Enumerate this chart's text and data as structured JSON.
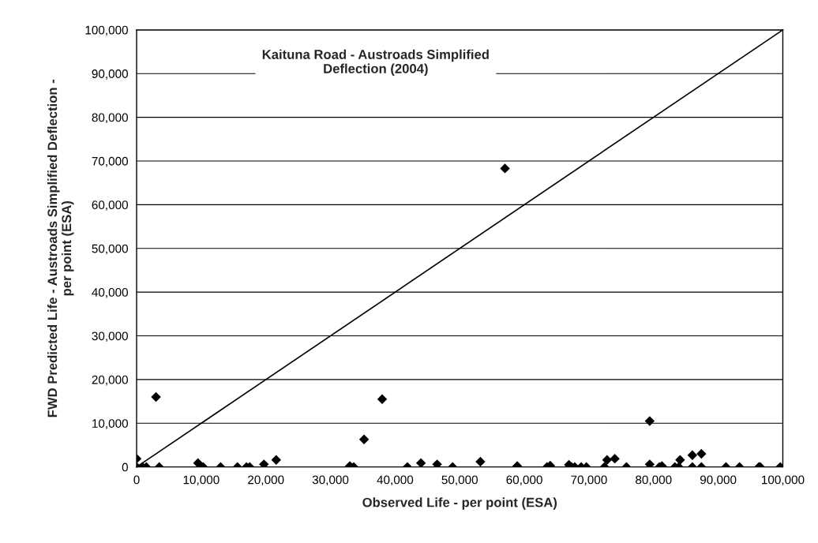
{
  "chart_data": {
    "type": "scatter",
    "title": "Kaituna Road - Austroads Simplified\nDeflection (2004)",
    "xlabel": "Observed Life - per point (ESA)",
    "ylabel": "FWD Predicted Life - Austroads Simplified Deflection -\nper point (ESA)",
    "series": [
      {
        "color": "#000000",
        "marker": "diamond",
        "x": [
          0,
          0,
          900,
          1500,
          3000,
          3500,
          9500,
          10300,
          13000,
          15600,
          17000,
          17500,
          19700,
          21600,
          33000,
          33600,
          35200,
          38000,
          41900,
          44000,
          46500,
          48900,
          53200,
          57000,
          58900,
          63500,
          64000,
          66900,
          67300,
          67800,
          68800,
          69600,
          72400,
          72800,
          74000,
          75800,
          79400,
          79400,
          80900,
          81300,
          83300,
          83900,
          84100,
          86000,
          86000,
          87400,
          87400,
          91200,
          93300,
          96300,
          96500,
          99600
        ],
        "values": [
          1900,
          0,
          0,
          0,
          16000,
          0,
          900,
          0,
          0,
          0,
          0,
          0,
          600,
          1600,
          200,
          0,
          6300,
          15500,
          0,
          900,
          600,
          0,
          1200,
          68300,
          200,
          0,
          300,
          500,
          0,
          0,
          0,
          0,
          0,
          1600,
          1900,
          0,
          600,
          10500,
          0,
          200,
          0,
          0,
          1600,
          2700,
          0,
          3000,
          0,
          0,
          0,
          0,
          0,
          0
        ]
      },
      {
        "type": "line",
        "color": "#000000",
        "marker": "none",
        "x": [
          0,
          100000
        ],
        "values": [
          0,
          100000
        ]
      }
    ],
    "xlim": [
      0,
      100000
    ],
    "ylim": [
      0,
      100000
    ],
    "xticks": [
      {
        "value": 0,
        "label": "0"
      },
      {
        "value": 10000,
        "label": "10,000"
      },
      {
        "value": 20000,
        "label": "20,000"
      },
      {
        "value": 30000,
        "label": "30,000"
      },
      {
        "value": 40000,
        "label": "40,000"
      },
      {
        "value": 50000,
        "label": "50,000"
      },
      {
        "value": 60000,
        "label": "60,000"
      },
      {
        "value": 70000,
        "label": "70,000"
      },
      {
        "value": 80000,
        "label": "80,000"
      },
      {
        "value": 90000,
        "label": "90,000"
      },
      {
        "value": 100000,
        "label": "100,000"
      }
    ],
    "yticks": [
      {
        "value": 0,
        "label": "0"
      },
      {
        "value": 10000,
        "label": "10,000"
      },
      {
        "value": 20000,
        "label": "20,000"
      },
      {
        "value": 30000,
        "label": "30,000"
      },
      {
        "value": 40000,
        "label": "40,000"
      },
      {
        "value": 50000,
        "label": "50,000"
      },
      {
        "value": 60000,
        "label": "60,000"
      },
      {
        "value": 70000,
        "label": "70,000"
      },
      {
        "value": 80000,
        "label": "80,000"
      },
      {
        "value": 90000,
        "label": "90,000"
      },
      {
        "value": 100000,
        "label": "100,000"
      }
    ],
    "grid": "y",
    "legend": false
  }
}
